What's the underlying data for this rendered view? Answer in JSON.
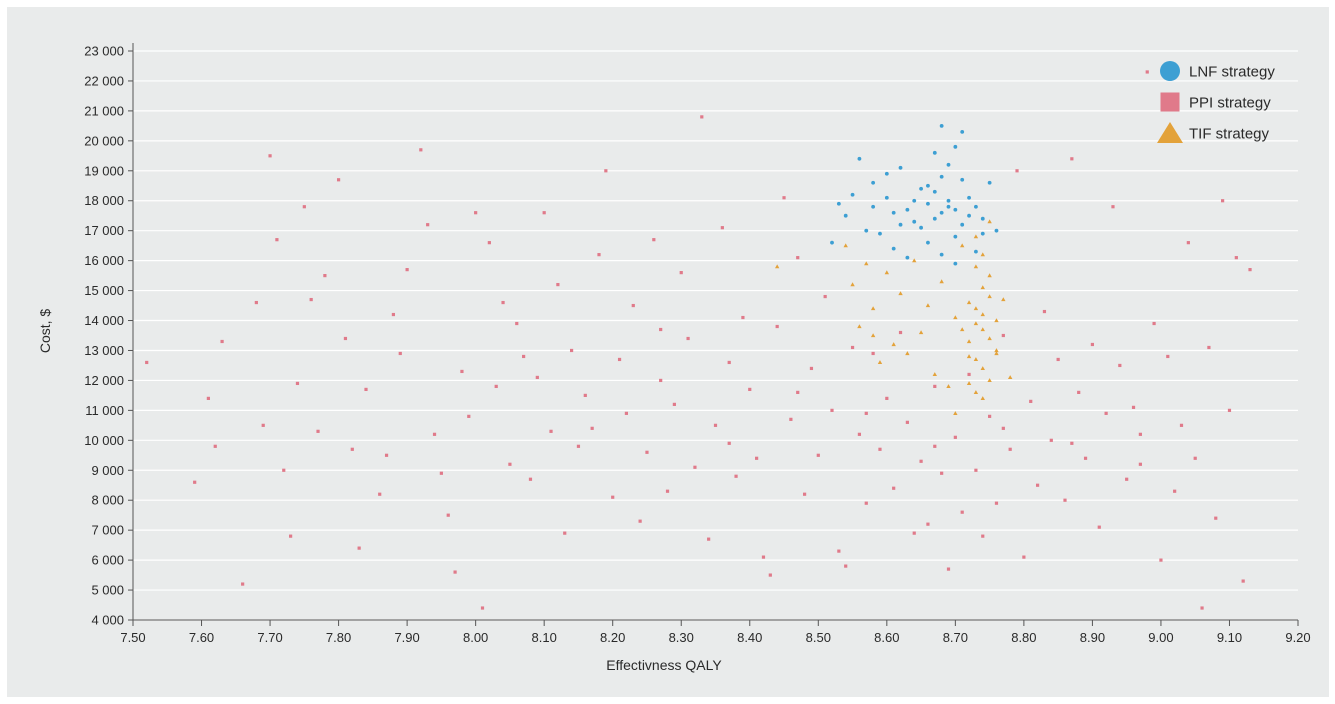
{
  "chart_data": {
    "type": "scatter",
    "xlabel": "Effectivness QALY",
    "ylabel": "Cost, $",
    "xlim": [
      7.5,
      9.2
    ],
    "ylim": [
      4000,
      23000
    ],
    "x_ticks": [
      "7.50",
      "7.60",
      "7.70",
      "7.80",
      "7.90",
      "8.00",
      "8.10",
      "8.20",
      "8.30",
      "8.40",
      "8.50",
      "8.60",
      "8.70",
      "8.80",
      "8.90",
      "9.00",
      "9.10",
      "9.20"
    ],
    "x_tick_values": [
      7.5,
      7.6,
      7.7,
      7.8,
      7.9,
      8.0,
      8.1,
      8.2,
      8.3,
      8.4,
      8.5,
      8.6,
      8.7,
      8.8,
      8.9,
      9.0,
      9.1,
      9.2
    ],
    "y_ticks": [
      "4 000",
      "5 000",
      "6 000",
      "7 000",
      "8 000",
      "9 000",
      "10 000",
      "11 000",
      "12 000",
      "13 000",
      "14 000",
      "15 000",
      "16 000",
      "17 000",
      "18 000",
      "19 000",
      "20 000",
      "21 000",
      "22 000",
      "23 000"
    ],
    "y_tick_values": [
      4000,
      5000,
      6000,
      7000,
      8000,
      9000,
      10000,
      11000,
      12000,
      13000,
      14000,
      15000,
      16000,
      17000,
      18000,
      19000,
      20000,
      21000,
      22000,
      23000
    ],
    "grid": true,
    "legend_position": "top-right",
    "series": [
      {
        "name": "LNF strategy",
        "color": "#3d9fd3",
        "marker": "circle",
        "points": [
          [
            8.53,
            17.9
          ],
          [
            8.54,
            17.5
          ],
          [
            8.55,
            18.2
          ],
          [
            8.56,
            19.4
          ],
          [
            8.57,
            17.0
          ],
          [
            8.58,
            18.6
          ],
          [
            8.59,
            16.9
          ],
          [
            8.6,
            18.9
          ],
          [
            8.61,
            16.4
          ],
          [
            8.62,
            19.1
          ],
          [
            8.63,
            16.1
          ],
          [
            8.64,
            17.3
          ],
          [
            8.65,
            18.4
          ],
          [
            8.66,
            16.6
          ],
          [
            8.67,
            19.6
          ],
          [
            8.68,
            20.5
          ],
          [
            8.69,
            17.8
          ],
          [
            8.7,
            15.9
          ],
          [
            8.71,
            20.3
          ],
          [
            8.72,
            18.1
          ],
          [
            8.73,
            16.3
          ],
          [
            8.74,
            17.4
          ],
          [
            8.75,
            18.6
          ],
          [
            8.76,
            17.0
          ],
          [
            8.66,
            17.9
          ],
          [
            8.68,
            17.6
          ],
          [
            8.7,
            17.7
          ],
          [
            8.67,
            18.3
          ],
          [
            8.69,
            18.0
          ],
          [
            8.71,
            17.2
          ],
          [
            8.65,
            17.1
          ],
          [
            8.72,
            17.5
          ],
          [
            8.68,
            18.8
          ],
          [
            8.64,
            18.0
          ],
          [
            8.7,
            16.8
          ],
          [
            8.67,
            17.4
          ],
          [
            8.69,
            19.2
          ],
          [
            8.73,
            17.8
          ],
          [
            8.66,
            18.5
          ],
          [
            8.71,
            18.7
          ],
          [
            8.63,
            17.7
          ],
          [
            8.74,
            16.9
          ],
          [
            8.62,
            17.2
          ],
          [
            8.68,
            16.2
          ],
          [
            8.7,
            19.8
          ],
          [
            8.52,
            16.6
          ],
          [
            8.58,
            17.8
          ],
          [
            8.61,
            17.6
          ],
          [
            8.6,
            18.1
          ]
        ]
      },
      {
        "name": "PPI strategy",
        "color": "#e07a8a",
        "marker": "square",
        "points": [
          [
            7.52,
            12.6
          ],
          [
            7.59,
            8.6
          ],
          [
            7.61,
            11.4
          ],
          [
            7.62,
            9.8
          ],
          [
            7.63,
            13.3
          ],
          [
            7.66,
            5.2
          ],
          [
            7.68,
            14.6
          ],
          [
            7.69,
            10.5
          ],
          [
            7.7,
            19.5
          ],
          [
            7.71,
            16.7
          ],
          [
            7.72,
            9.0
          ],
          [
            7.73,
            6.8
          ],
          [
            7.75,
            17.8
          ],
          [
            7.76,
            14.7
          ],
          [
            7.77,
            10.3
          ],
          [
            7.78,
            15.5
          ],
          [
            7.8,
            18.7
          ],
          [
            7.81,
            13.4
          ],
          [
            7.82,
            9.7
          ],
          [
            7.83,
            6.4
          ],
          [
            7.84,
            11.7
          ],
          [
            7.86,
            8.2
          ],
          [
            7.88,
            14.2
          ],
          [
            7.89,
            12.9
          ],
          [
            7.9,
            15.7
          ],
          [
            7.92,
            19.7
          ],
          [
            7.93,
            17.2
          ],
          [
            7.94,
            10.2
          ],
          [
            7.95,
            8.9
          ],
          [
            7.96,
            7.5
          ],
          [
            7.97,
            5.6
          ],
          [
            7.98,
            12.3
          ],
          [
            7.99,
            10.8
          ],
          [
            8.0,
            17.6
          ],
          [
            8.01,
            4.4
          ],
          [
            8.02,
            16.6
          ],
          [
            8.03,
            11.8
          ],
          [
            8.04,
            14.6
          ],
          [
            8.05,
            9.2
          ],
          [
            8.06,
            13.9
          ],
          [
            8.08,
            8.7
          ],
          [
            8.09,
            12.1
          ],
          [
            8.1,
            17.6
          ],
          [
            8.11,
            10.3
          ],
          [
            8.12,
            15.2
          ],
          [
            8.13,
            6.9
          ],
          [
            8.14,
            13.0
          ],
          [
            8.15,
            9.8
          ],
          [
            8.16,
            11.5
          ],
          [
            8.18,
            16.2
          ],
          [
            8.19,
            19.0
          ],
          [
            8.2,
            8.1
          ],
          [
            8.21,
            12.7
          ],
          [
            8.22,
            10.9
          ],
          [
            8.23,
            14.5
          ],
          [
            8.24,
            7.3
          ],
          [
            8.25,
            9.6
          ],
          [
            8.26,
            16.7
          ],
          [
            8.27,
            12.0
          ],
          [
            8.28,
            8.3
          ],
          [
            8.29,
            11.2
          ],
          [
            8.3,
            15.6
          ],
          [
            8.31,
            13.4
          ],
          [
            8.32,
            9.1
          ],
          [
            8.33,
            20.8
          ],
          [
            8.34,
            6.7
          ],
          [
            8.35,
            10.5
          ],
          [
            8.36,
            17.1
          ],
          [
            8.37,
            12.6
          ],
          [
            8.38,
            8.8
          ],
          [
            8.39,
            14.1
          ],
          [
            8.4,
            11.7
          ],
          [
            8.41,
            9.4
          ],
          [
            8.42,
            6.1
          ],
          [
            8.43,
            5.5
          ],
          [
            8.44,
            13.8
          ],
          [
            8.45,
            18.1
          ],
          [
            8.46,
            10.7
          ],
          [
            8.47,
            16.1
          ],
          [
            8.48,
            8.2
          ],
          [
            8.49,
            12.4
          ],
          [
            8.5,
            9.5
          ],
          [
            8.51,
            14.8
          ],
          [
            8.52,
            11.0
          ],
          [
            8.53,
            6.3
          ],
          [
            8.54,
            5.8
          ],
          [
            8.55,
            13.1
          ],
          [
            8.56,
            10.2
          ],
          [
            8.57,
            7.9
          ],
          [
            8.58,
            12.9
          ],
          [
            8.59,
            9.7
          ],
          [
            8.6,
            11.4
          ],
          [
            8.61,
            8.4
          ],
          [
            8.62,
            13.6
          ],
          [
            8.63,
            10.6
          ],
          [
            8.64,
            6.9
          ],
          [
            8.65,
            9.3
          ],
          [
            8.66,
            7.2
          ],
          [
            8.67,
            11.8
          ],
          [
            8.68,
            8.9
          ],
          [
            8.69,
            5.7
          ],
          [
            8.7,
            10.1
          ],
          [
            8.71,
            7.6
          ],
          [
            8.72,
            12.2
          ],
          [
            8.73,
            9.0
          ],
          [
            8.74,
            6.8
          ],
          [
            8.75,
            10.8
          ],
          [
            8.76,
            7.9
          ],
          [
            8.77,
            13.5
          ],
          [
            8.78,
            9.7
          ],
          [
            8.79,
            19.0
          ],
          [
            8.8,
            6.1
          ],
          [
            8.81,
            11.3
          ],
          [
            8.82,
            8.5
          ],
          [
            8.83,
            14.3
          ],
          [
            8.84,
            10.0
          ],
          [
            8.85,
            12.7
          ],
          [
            8.86,
            8.0
          ],
          [
            8.87,
            19.4
          ],
          [
            8.88,
            11.6
          ],
          [
            8.89,
            9.4
          ],
          [
            8.9,
            13.2
          ],
          [
            8.91,
            7.1
          ],
          [
            8.92,
            10.9
          ],
          [
            8.93,
            17.8
          ],
          [
            8.94,
            12.5
          ],
          [
            8.95,
            8.7
          ],
          [
            8.96,
            11.1
          ],
          [
            8.97,
            9.2
          ],
          [
            8.98,
            22.3
          ],
          [
            8.99,
            13.9
          ],
          [
            9.0,
            6.0
          ],
          [
            9.01,
            12.8
          ],
          [
            9.02,
            8.3
          ],
          [
            9.03,
            10.5
          ],
          [
            9.04,
            16.6
          ],
          [
            9.05,
            9.4
          ],
          [
            9.06,
            4.4
          ],
          [
            9.07,
            13.1
          ],
          [
            9.08,
            7.4
          ],
          [
            9.09,
            18.0
          ],
          [
            9.1,
            11.0
          ],
          [
            9.11,
            16.1
          ],
          [
            9.12,
            5.3
          ],
          [
            9.13,
            15.7
          ],
          [
            7.74,
            11.9
          ],
          [
            7.87,
            9.5
          ],
          [
            8.07,
            12.8
          ],
          [
            8.17,
            10.4
          ],
          [
            8.27,
            13.7
          ],
          [
            8.37,
            9.9
          ],
          [
            8.47,
            11.6
          ],
          [
            8.57,
            10.9
          ],
          [
            8.67,
            9.8
          ],
          [
            8.77,
            10.4
          ],
          [
            8.87,
            9.9
          ],
          [
            8.97,
            10.2
          ]
        ]
      },
      {
        "name": "TIF strategy",
        "color": "#e3a23a",
        "marker": "triangle",
        "points": [
          [
            8.54,
            16.5
          ],
          [
            8.55,
            15.2
          ],
          [
            8.56,
            13.8
          ],
          [
            8.57,
            15.9
          ],
          [
            8.58,
            14.4
          ],
          [
            8.59,
            12.6
          ],
          [
            8.6,
            15.6
          ],
          [
            8.61,
            13.2
          ],
          [
            8.62,
            14.9
          ],
          [
            8.63,
            12.9
          ],
          [
            8.64,
            16.0
          ],
          [
            8.65,
            13.6
          ],
          [
            8.66,
            14.5
          ],
          [
            8.67,
            12.2
          ],
          [
            8.68,
            15.3
          ],
          [
            8.69,
            11.8
          ],
          [
            8.7,
            14.1
          ],
          [
            8.71,
            16.5
          ],
          [
            8.72,
            12.8
          ],
          [
            8.73,
            15.8
          ],
          [
            8.74,
            11.4
          ],
          [
            8.75,
            17.3
          ],
          [
            8.76,
            13.0
          ],
          [
            8.77,
            14.7
          ],
          [
            8.78,
            12.1
          ],
          [
            8.72,
            14.6
          ],
          [
            8.73,
            13.9
          ],
          [
            8.74,
            14.2
          ],
          [
            8.75,
            13.4
          ],
          [
            8.73,
            12.7
          ],
          [
            8.74,
            15.1
          ],
          [
            8.75,
            14.8
          ],
          [
            8.72,
            13.3
          ],
          [
            8.76,
            14.0
          ],
          [
            8.74,
            12.4
          ],
          [
            8.73,
            11.6
          ],
          [
            8.75,
            15.5
          ],
          [
            8.74,
            16.2
          ],
          [
            8.73,
            14.4
          ],
          [
            8.71,
            13.7
          ],
          [
            8.76,
            12.9
          ],
          [
            8.72,
            11.9
          ],
          [
            8.74,
            13.7
          ],
          [
            8.75,
            12.0
          ],
          [
            8.73,
            16.8
          ],
          [
            8.44,
            15.8
          ],
          [
            8.58,
            13.5
          ],
          [
            8.7,
            10.9
          ]
        ]
      }
    ]
  }
}
